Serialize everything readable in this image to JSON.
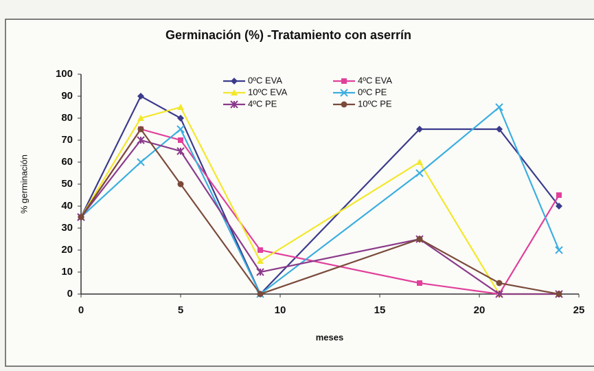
{
  "chart_data": {
    "type": "line",
    "title": "Germinación (%) -Tratamiento con aserrín",
    "x_label": "meses",
    "y_label": "% germinación",
    "x": [
      0,
      3,
      5,
      9,
      17,
      21,
      24
    ],
    "series": [
      {
        "name": "0ºC EVA",
        "color": "#3b3b8c",
        "marker": "diamond",
        "values": [
          35,
          90,
          80,
          0,
          75,
          75,
          40
        ]
      },
      {
        "name": "4ºC EVA",
        "color": "#e0409a",
        "marker": "square",
        "values": [
          35,
          75,
          70,
          20,
          5,
          0,
          45
        ]
      },
      {
        "name": "10ºC EVA",
        "color": "#f2e82a",
        "marker": "triangle",
        "values": [
          35,
          80,
          85,
          15,
          60,
          0,
          0
        ]
      },
      {
        "name": "0ºC PE",
        "color": "#3aaee0",
        "marker": "x",
        "values": [
          35,
          60,
          75,
          0,
          55,
          85,
          20
        ]
      },
      {
        "name": "4ºC PE",
        "color": "#8a3a8a",
        "marker": "star",
        "values": [
          35,
          70,
          65,
          10,
          25,
          0,
          0
        ]
      },
      {
        "name": "10ºC PE",
        "color": "#7a4a3a",
        "marker": "circle",
        "values": [
          35,
          75,
          50,
          0,
          25,
          5,
          0
        ]
      }
    ],
    "xlim": [
      0,
      25
    ],
    "xticks": [
      0,
      5,
      10,
      15,
      20,
      25
    ],
    "ylim": [
      0,
      100
    ],
    "yticks": [
      0,
      10,
      20,
      30,
      40,
      50,
      60,
      70,
      80,
      90,
      100
    ],
    "legend": "top"
  }
}
